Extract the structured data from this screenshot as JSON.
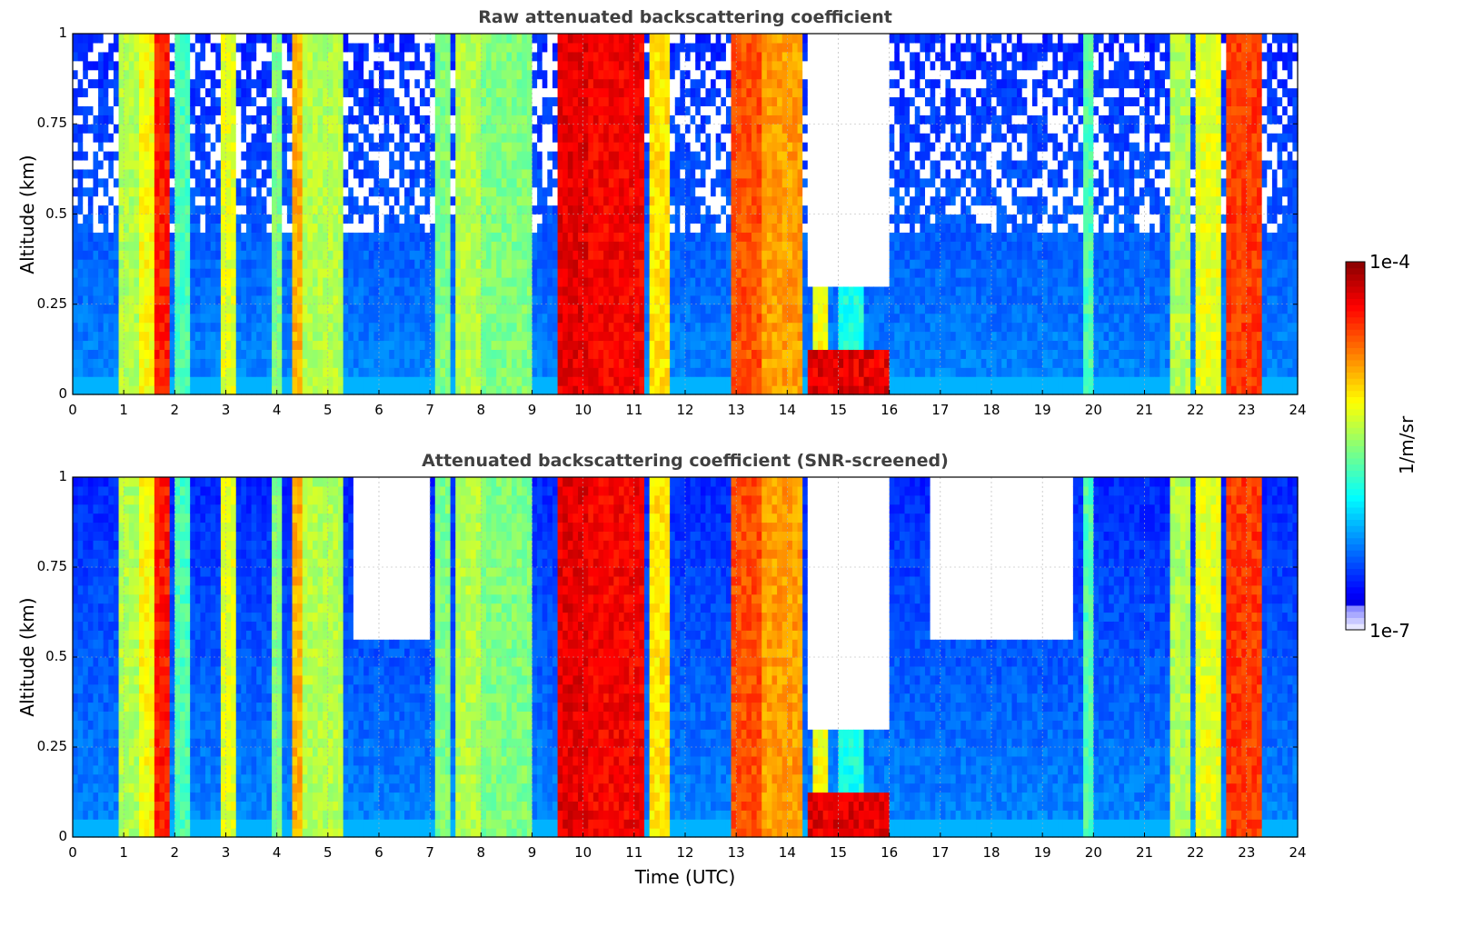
{
  "chart_data": [
    {
      "type": "heatmap",
      "title": "Raw attenuated backscattering coefficient",
      "xlabel": "",
      "ylabel": "Altitude (km)",
      "xlim": [
        0,
        24
      ],
      "ylim": [
        0,
        1
      ],
      "x_ticks": [
        "0",
        "1",
        "2",
        "3",
        "4",
        "5",
        "6",
        "7",
        "8",
        "9",
        "10",
        "11",
        "12",
        "13",
        "14",
        "15",
        "16",
        "17",
        "18",
        "19",
        "20",
        "21",
        "22",
        "23",
        "24"
      ],
      "y_ticks": [
        "0",
        "0.25",
        "0.5",
        "0.75",
        "1"
      ],
      "grid": true,
      "colormap": "jet",
      "colorbar_range": [
        "1e-7",
        "1e-4"
      ],
      "colorbar_label": "1/m/sr",
      "screened": false
    },
    {
      "type": "heatmap",
      "title": "Attenuated backscattering coefficient (SNR-screened)",
      "xlabel": "Time (UTC)",
      "ylabel": "Altitude (km)",
      "xlim": [
        0,
        24
      ],
      "ylim": [
        0,
        1
      ],
      "x_ticks": [
        "0",
        "1",
        "2",
        "3",
        "4",
        "5",
        "6",
        "7",
        "8",
        "9",
        "10",
        "11",
        "12",
        "13",
        "14",
        "15",
        "16",
        "17",
        "18",
        "19",
        "20",
        "21",
        "22",
        "23",
        "24"
      ],
      "y_ticks": [
        "0",
        "0.25",
        "0.5",
        "0.75",
        "1"
      ],
      "grid": true,
      "colormap": "jet",
      "colorbar_range": [
        "1e-7",
        "1e-4"
      ],
      "colorbar_label": "1/m/sr",
      "screened": true
    }
  ],
  "colorbar": {
    "top_label": "1e-4",
    "bottom_label": "1e-7",
    "unit_label": "1/m/sr"
  },
  "colors": {
    "title": "#404040",
    "grid": "#b0b0b0",
    "axis": "#000000"
  }
}
